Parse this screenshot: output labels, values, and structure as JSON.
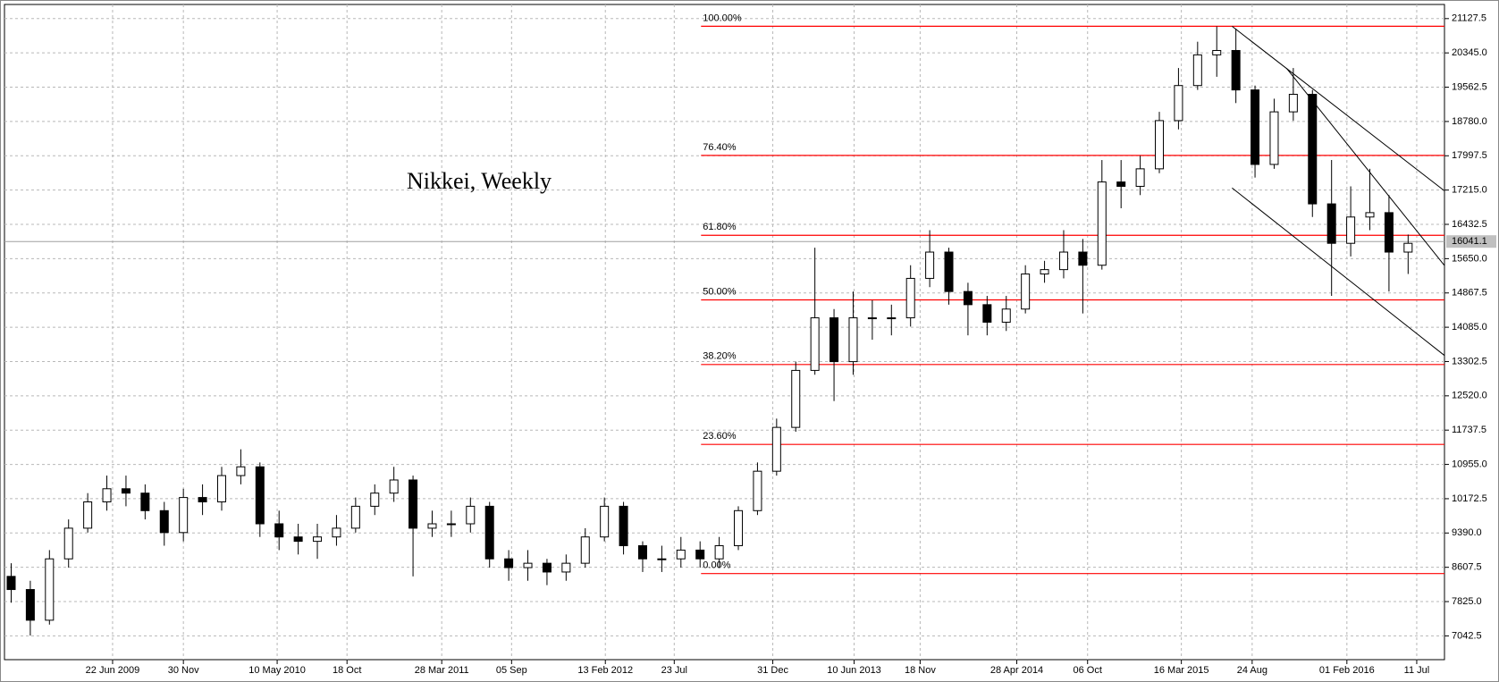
{
  "chart_data": {
    "type": "candlestick",
    "title": "Nikkei, Weekly",
    "open": [
      8400,
      8100,
      7400,
      8800,
      9500,
      10100,
      10400,
      10300,
      9900,
      9400,
      10200,
      10100,
      10700,
      10900,
      9600,
      9300,
      9200,
      9300,
      9500,
      10000,
      10300,
      10600,
      9500,
      9600,
      9600,
      10000,
      8800,
      8600,
      8700,
      8500,
      8700,
      9300,
      10000,
      9100,
      8800,
      8800,
      9000,
      8800,
      9100,
      9900,
      10800,
      11800,
      13100,
      14300,
      13300,
      14300,
      14300,
      14300,
      15200,
      15800,
      14900,
      14600,
      14200,
      14500,
      15300,
      15400,
      15800,
      15500,
      17400,
      17300,
      17700,
      18800,
      19600,
      20300,
      20400,
      19500,
      17800,
      19000,
      19400,
      16900,
      16000,
      16600,
      16700,
      15800
    ],
    "high": [
      8700,
      8300,
      9000,
      9700,
      10300,
      10700,
      10700,
      10500,
      10100,
      10400,
      10500,
      10900,
      11300,
      11000,
      9900,
      9600,
      9600,
      9800,
      10200,
      10500,
      10900,
      10700,
      9900,
      9900,
      10200,
      10100,
      9000,
      9000,
      8800,
      8900,
      9500,
      10200,
      10100,
      9200,
      9100,
      9300,
      9200,
      9300,
      10000,
      11000,
      12000,
      13300,
      15900,
      14500,
      14900,
      14700,
      14600,
      15500,
      16300,
      15900,
      15100,
      14800,
      14800,
      15500,
      15600,
      16300,
      16100,
      17900,
      17900,
      18000,
      19000,
      20000,
      20600,
      20950,
      20900,
      19600,
      19300,
      20000,
      19500,
      17900,
      17300,
      17700,
      17100,
      16200
    ],
    "low": [
      7800,
      7050,
      7300,
      8600,
      9400,
      9900,
      10000,
      9700,
      9100,
      9200,
      9800,
      9900,
      10500,
      9300,
      9000,
      8900,
      8800,
      9100,
      9400,
      9800,
      10100,
      8400,
      9300,
      9300,
      9400,
      8600,
      8300,
      8300,
      8200,
      8300,
      8600,
      9200,
      8900,
      8500,
      8500,
      8600,
      8600,
      8600,
      9000,
      9800,
      10700,
      11700,
      13000,
      12400,
      13000,
      13800,
      13900,
      14100,
      15000,
      14600,
      13900,
      13900,
      14000,
      14400,
      15100,
      15200,
      14400,
      15400,
      16800,
      17100,
      17600,
      18600,
      19500,
      19800,
      19200,
      17500,
      17700,
      18800,
      16600,
      14800,
      15700,
      16300,
      14900,
      15300
    ],
    "close": [
      8100,
      7400,
      8800,
      9500,
      10100,
      10400,
      10300,
      9900,
      9400,
      10200,
      10100,
      10700,
      10900,
      9600,
      9300,
      9200,
      9300,
      9500,
      10000,
      10300,
      10600,
      9500,
      9600,
      9600,
      10000,
      8800,
      8600,
      8700,
      8500,
      8700,
      9300,
      10000,
      9100,
      8800,
      8800,
      9000,
      8800,
      9100,
      9900,
      10800,
      11800,
      13100,
      14300,
      13300,
      14300,
      14300,
      14300,
      15200,
      15800,
      14900,
      14600,
      14200,
      14500,
      15300,
      15400,
      15800,
      15500,
      17400,
      17300,
      17700,
      18800,
      19600,
      20300,
      20400,
      19500,
      17800,
      19000,
      19400,
      16900,
      16000,
      16600,
      16700,
      15800,
      16000
    ],
    "xlim": [
      -0.35,
      74.9
    ],
    "xticks": [
      {
        "value": 5.3,
        "label": "22 Jun 2009"
      },
      {
        "value": 9.0,
        "label": "30 Nov"
      },
      {
        "value": 13.9,
        "label": "10 May 2010"
      },
      {
        "value": 17.55,
        "label": "18 Oct"
      },
      {
        "value": 22.5,
        "label": "28 Mar 2011"
      },
      {
        "value": 26.15,
        "label": "05 Sep"
      },
      {
        "value": 31.05,
        "label": "13 Feb 2012"
      },
      {
        "value": 34.65,
        "label": "23 Jul"
      },
      {
        "value": 39.8,
        "label": "31 Dec"
      },
      {
        "value": 44.05,
        "label": "10 Jun 2013"
      },
      {
        "value": 47.5,
        "label": "18 Nov"
      },
      {
        "value": 52.55,
        "label": "28 Apr 2014"
      },
      {
        "value": 56.25,
        "label": "06 Oct"
      },
      {
        "value": 61.15,
        "label": "16 Mar 2015"
      },
      {
        "value": 64.85,
        "label": "24 Aug"
      },
      {
        "value": 69.8,
        "label": "01 Feb 2016"
      },
      {
        "value": 73.45,
        "label": "11 Jul"
      }
    ],
    "ylim": [
      6500,
      21450
    ],
    "yticks": [
      7042.5,
      {
        "value": 7825,
        "label": "7825.0"
      },
      8607.5,
      {
        "value": 9390,
        "label": "9390.0"
      },
      10172.5,
      {
        "value": 10955,
        "label": "10955.0"
      },
      11737.5,
      {
        "value": 12520,
        "label": "12520.0"
      },
      13302.5,
      {
        "value": 14085,
        "label": "14085.0"
      },
      14867.5,
      {
        "value": 15650,
        "label": "15650.0"
      },
      16432.5,
      {
        "value": 17215,
        "label": "17215.0"
      },
      17997.5,
      {
        "value": 18780,
        "label": "18780.0"
      },
      19562.5,
      {
        "value": 20345,
        "label": "20345.0"
      },
      21127.5
    ],
    "grid": true,
    "last_price": 16041.1,
    "fibonacci": {
      "low": 8464,
      "high": 20953,
      "start_x": 36.05,
      "color": "#ff0000",
      "levels": [
        {
          "value": 100,
          "label": "100.00%"
        },
        {
          "value": 76.4,
          "label": "76.40%"
        },
        {
          "value": 61.8,
          "label": "61.80%"
        },
        {
          "value": 50,
          "label": "50.00%"
        },
        {
          "value": 38.2,
          "label": "38.20%"
        },
        {
          "value": 23.6,
          "label": "23.60%"
        },
        {
          "value": 0,
          "label": "0.00%"
        }
      ]
    },
    "trendlines": [
      {
        "x": [
          63.8,
          74.9
        ],
        "y": [
          20953,
          17198
        ]
      },
      {
        "x": [
          63.8,
          74.9
        ],
        "y": [
          17264,
          13441
        ]
      },
      {
        "x": [
          66.65,
          74.9
        ],
        "y": [
          19992,
          15494
        ]
      }
    ]
  }
}
